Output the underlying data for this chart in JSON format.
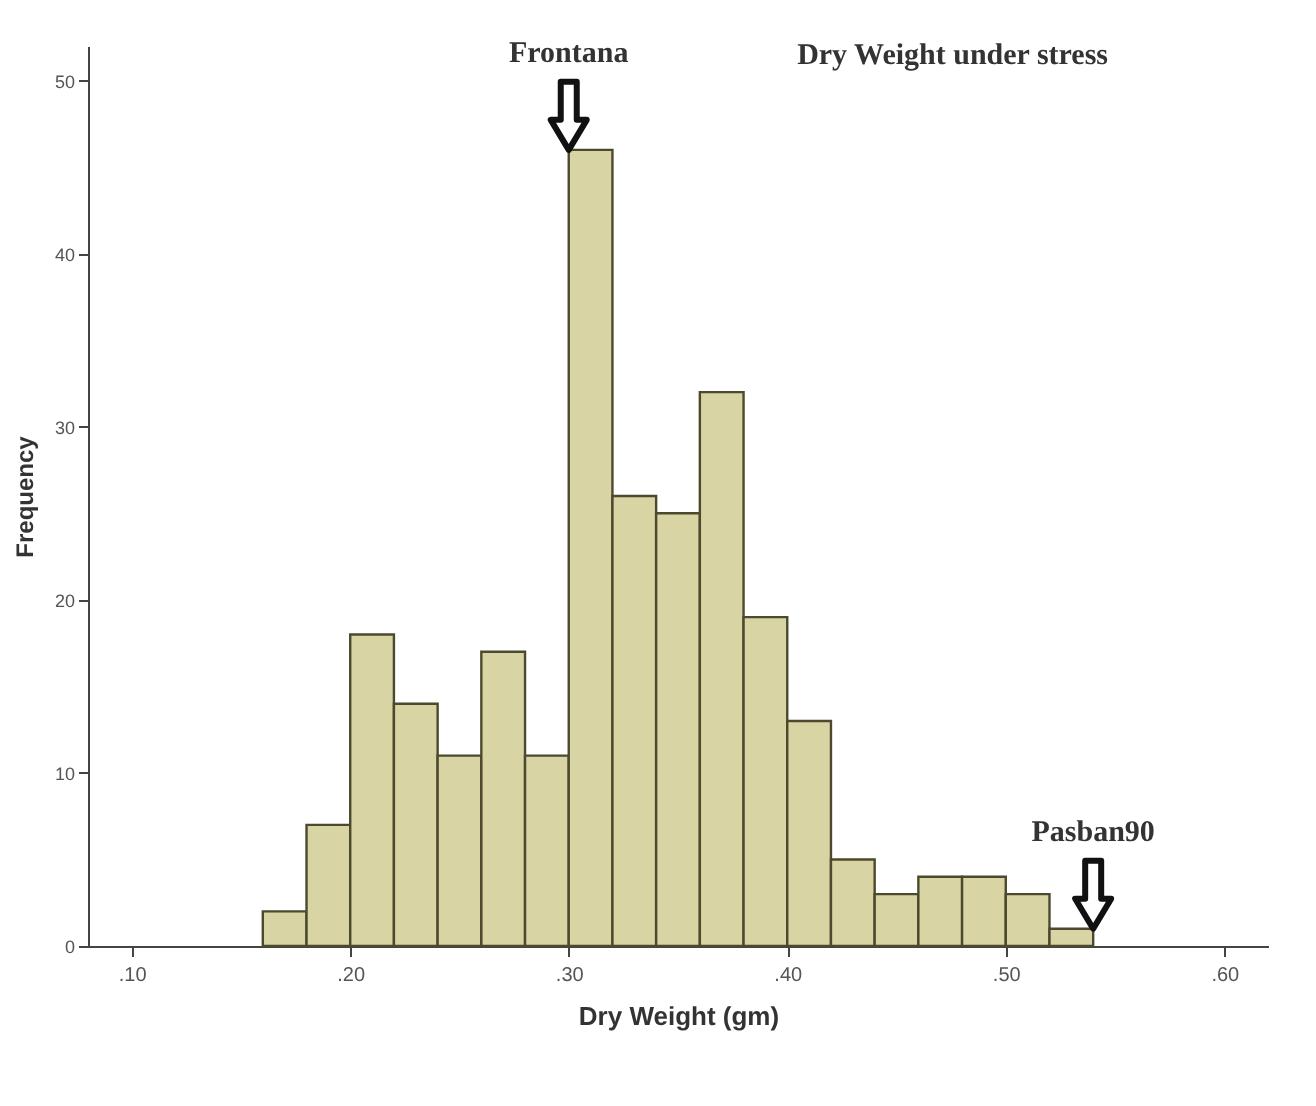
{
  "chart_data": {
    "type": "histogram",
    "title": "Dry Weight under stress",
    "xlabel": "Dry Weight (gm)",
    "ylabel": "Frequency",
    "bins": [
      0.16,
      0.18,
      0.2,
      0.22,
      0.24,
      0.26,
      0.28,
      0.3,
      0.32,
      0.34,
      0.36,
      0.38,
      0.4,
      0.42,
      0.44,
      0.46,
      0.48,
      0.5,
      0.52,
      0.54
    ],
    "values": [
      2,
      7,
      18,
      14,
      11,
      17,
      11,
      46,
      26,
      25,
      32,
      19,
      13,
      5,
      3,
      4,
      4,
      3,
      1
    ],
    "color": "#d9d4a3",
    "xlim": [
      0.08,
      0.62
    ],
    "xticks": [
      {
        "value": 0.1,
        "label": ".10"
      },
      {
        "value": 0.2,
        "label": ".20"
      },
      {
        "value": 0.3,
        "label": ".30"
      },
      {
        "value": 0.4,
        "label": ".40"
      },
      {
        "value": 0.5,
        "label": ".50"
      },
      {
        "value": 0.6,
        "label": ".60"
      }
    ],
    "ylim": [
      0,
      52
    ],
    "yticks": [
      0,
      10,
      20,
      30,
      40,
      50
    ],
    "grid": false,
    "annotations": [
      {
        "text": "Frontana",
        "x": 0.3,
        "y": 46
      },
      {
        "text": "Pasban90",
        "x": 0.54,
        "y": 1
      }
    ]
  }
}
